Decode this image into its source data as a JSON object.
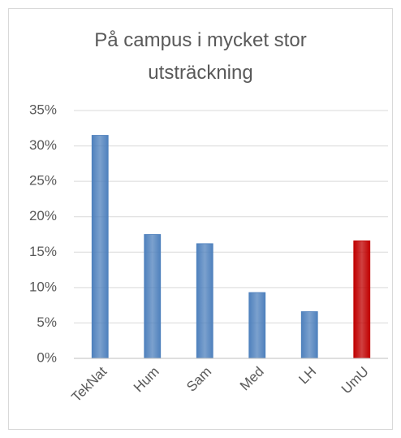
{
  "chart_data": {
    "type": "bar",
    "title": "På campus i mycket stor utsträckning",
    "categories": [
      "TekNat",
      "Hum",
      "Sam",
      "Med",
      "LH",
      "UmU"
    ],
    "values": [
      31.5,
      17.5,
      16.2,
      9.3,
      6.6,
      16.6
    ],
    "colors": [
      "#4f81bd",
      "#4f81bd",
      "#4f81bd",
      "#4f81bd",
      "#4f81bd",
      "#c00000"
    ],
    "ylim": [
      0,
      35
    ],
    "yticks": [
      {
        "value": 0,
        "label": "0%"
      },
      {
        "value": 5,
        "label": "5%"
      },
      {
        "value": 10,
        "label": "10%"
      },
      {
        "value": 15,
        "label": "15%"
      },
      {
        "value": 20,
        "label": "20%"
      },
      {
        "value": 25,
        "label": "25%"
      },
      {
        "value": 30,
        "label": "30%"
      },
      {
        "value": 35,
        "label": "35%"
      }
    ],
    "grid": true
  }
}
